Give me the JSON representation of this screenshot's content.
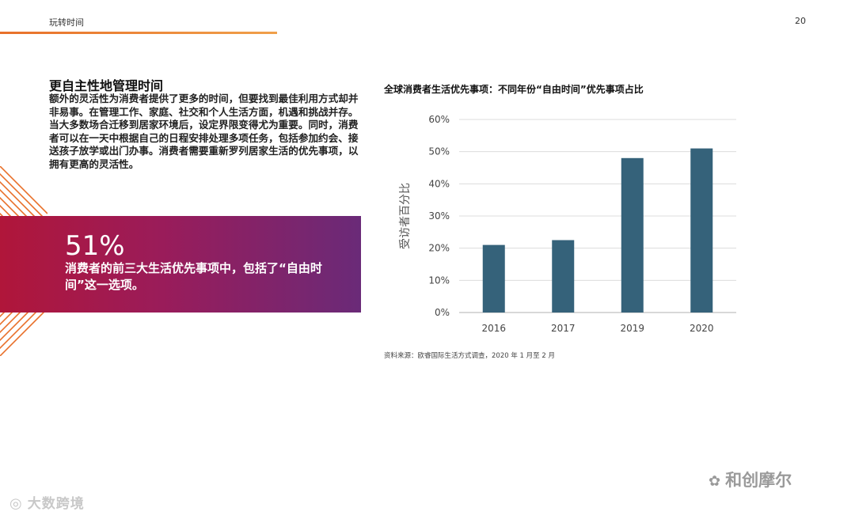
{
  "header": {
    "section": "玩转时间",
    "page_number": "20"
  },
  "article": {
    "title": "更自主性地管理时间",
    "body": "额外的灵活性为消费者提供了更多的时间，但要找到最佳利用方式却并非易事。在管理工作、家庭、社交和个人生活方面，机遇和挑战并存。当大多数场合迁移到居家环境后，设定界限变得尤为重要。同时，消费者可以在一天中根据自己的日程安排处理多项任务，包括参加约会、接送孩子放学或出门办事。消费者需要重新罗列居家生活的优先事项，以拥有更高的灵活性。"
  },
  "callout": {
    "value": "51%",
    "text": "消费者的前三大生活优先事项中，包括了“自由时间”这一选项。"
  },
  "chart_data": {
    "type": "bar",
    "title": "全球消费者生活优先事项：不同年份“自由时间”优先事项占比",
    "categories": [
      "2016",
      "2017",
      "2019",
      "2020"
    ],
    "values": [
      21,
      22.5,
      48,
      51
    ],
    "ylabel": "受访者百分比",
    "xlabel": "",
    "ylim": [
      0,
      60
    ],
    "yticks": [
      "0%",
      "10%",
      "20%",
      "30%",
      "40%",
      "50%",
      "60%"
    ],
    "grid": true,
    "bar_color": "#35627a"
  },
  "source": "资料来源：欧睿国际生活方式调查，2020 年 1 月至 2 月",
  "watermarks": {
    "left": "大数跨境",
    "right": "和创摩尔"
  },
  "colors": {
    "accent_orange": "#e8702a",
    "callout_red": "#b0163a",
    "callout_purple": "#6a2a78"
  }
}
